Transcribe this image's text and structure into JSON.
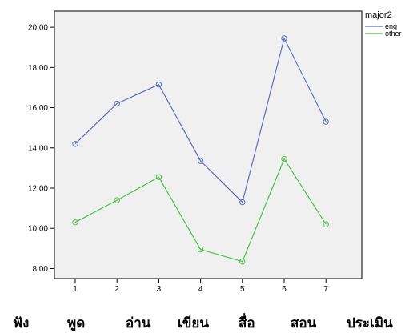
{
  "chart_data": {
    "type": "line",
    "x": [
      1,
      2,
      3,
      4,
      5,
      6,
      7
    ],
    "xticks": [
      "1",
      "2",
      "3",
      "4",
      "5",
      "6",
      "7"
    ],
    "ylim": [
      7.5,
      20.8
    ],
    "yticks": [
      "8.00",
      "10.00",
      "12.00",
      "14.00",
      "16.00",
      "18.00",
      "20.00"
    ],
    "yticks_values": [
      8,
      10,
      12,
      14,
      16,
      18,
      20
    ],
    "legend_title": "major2",
    "legend_position": "top-right",
    "plot_background": "#f0f0f0",
    "series": [
      {
        "name": "eng",
        "color": "#5b6fbf",
        "values": [
          14.2,
          16.2,
          17.15,
          13.35,
          11.3,
          19.45,
          15.3
        ]
      },
      {
        "name": "other",
        "color": "#4cc04c",
        "values": [
          10.3,
          11.4,
          12.55,
          8.95,
          8.35,
          13.45,
          10.2
        ]
      }
    ],
    "category_labels": [
      "ฟัง",
      "พูด",
      "อ่าน",
      "เขียน",
      "สื่อ",
      "สอน",
      "ประเมิน"
    ]
  }
}
